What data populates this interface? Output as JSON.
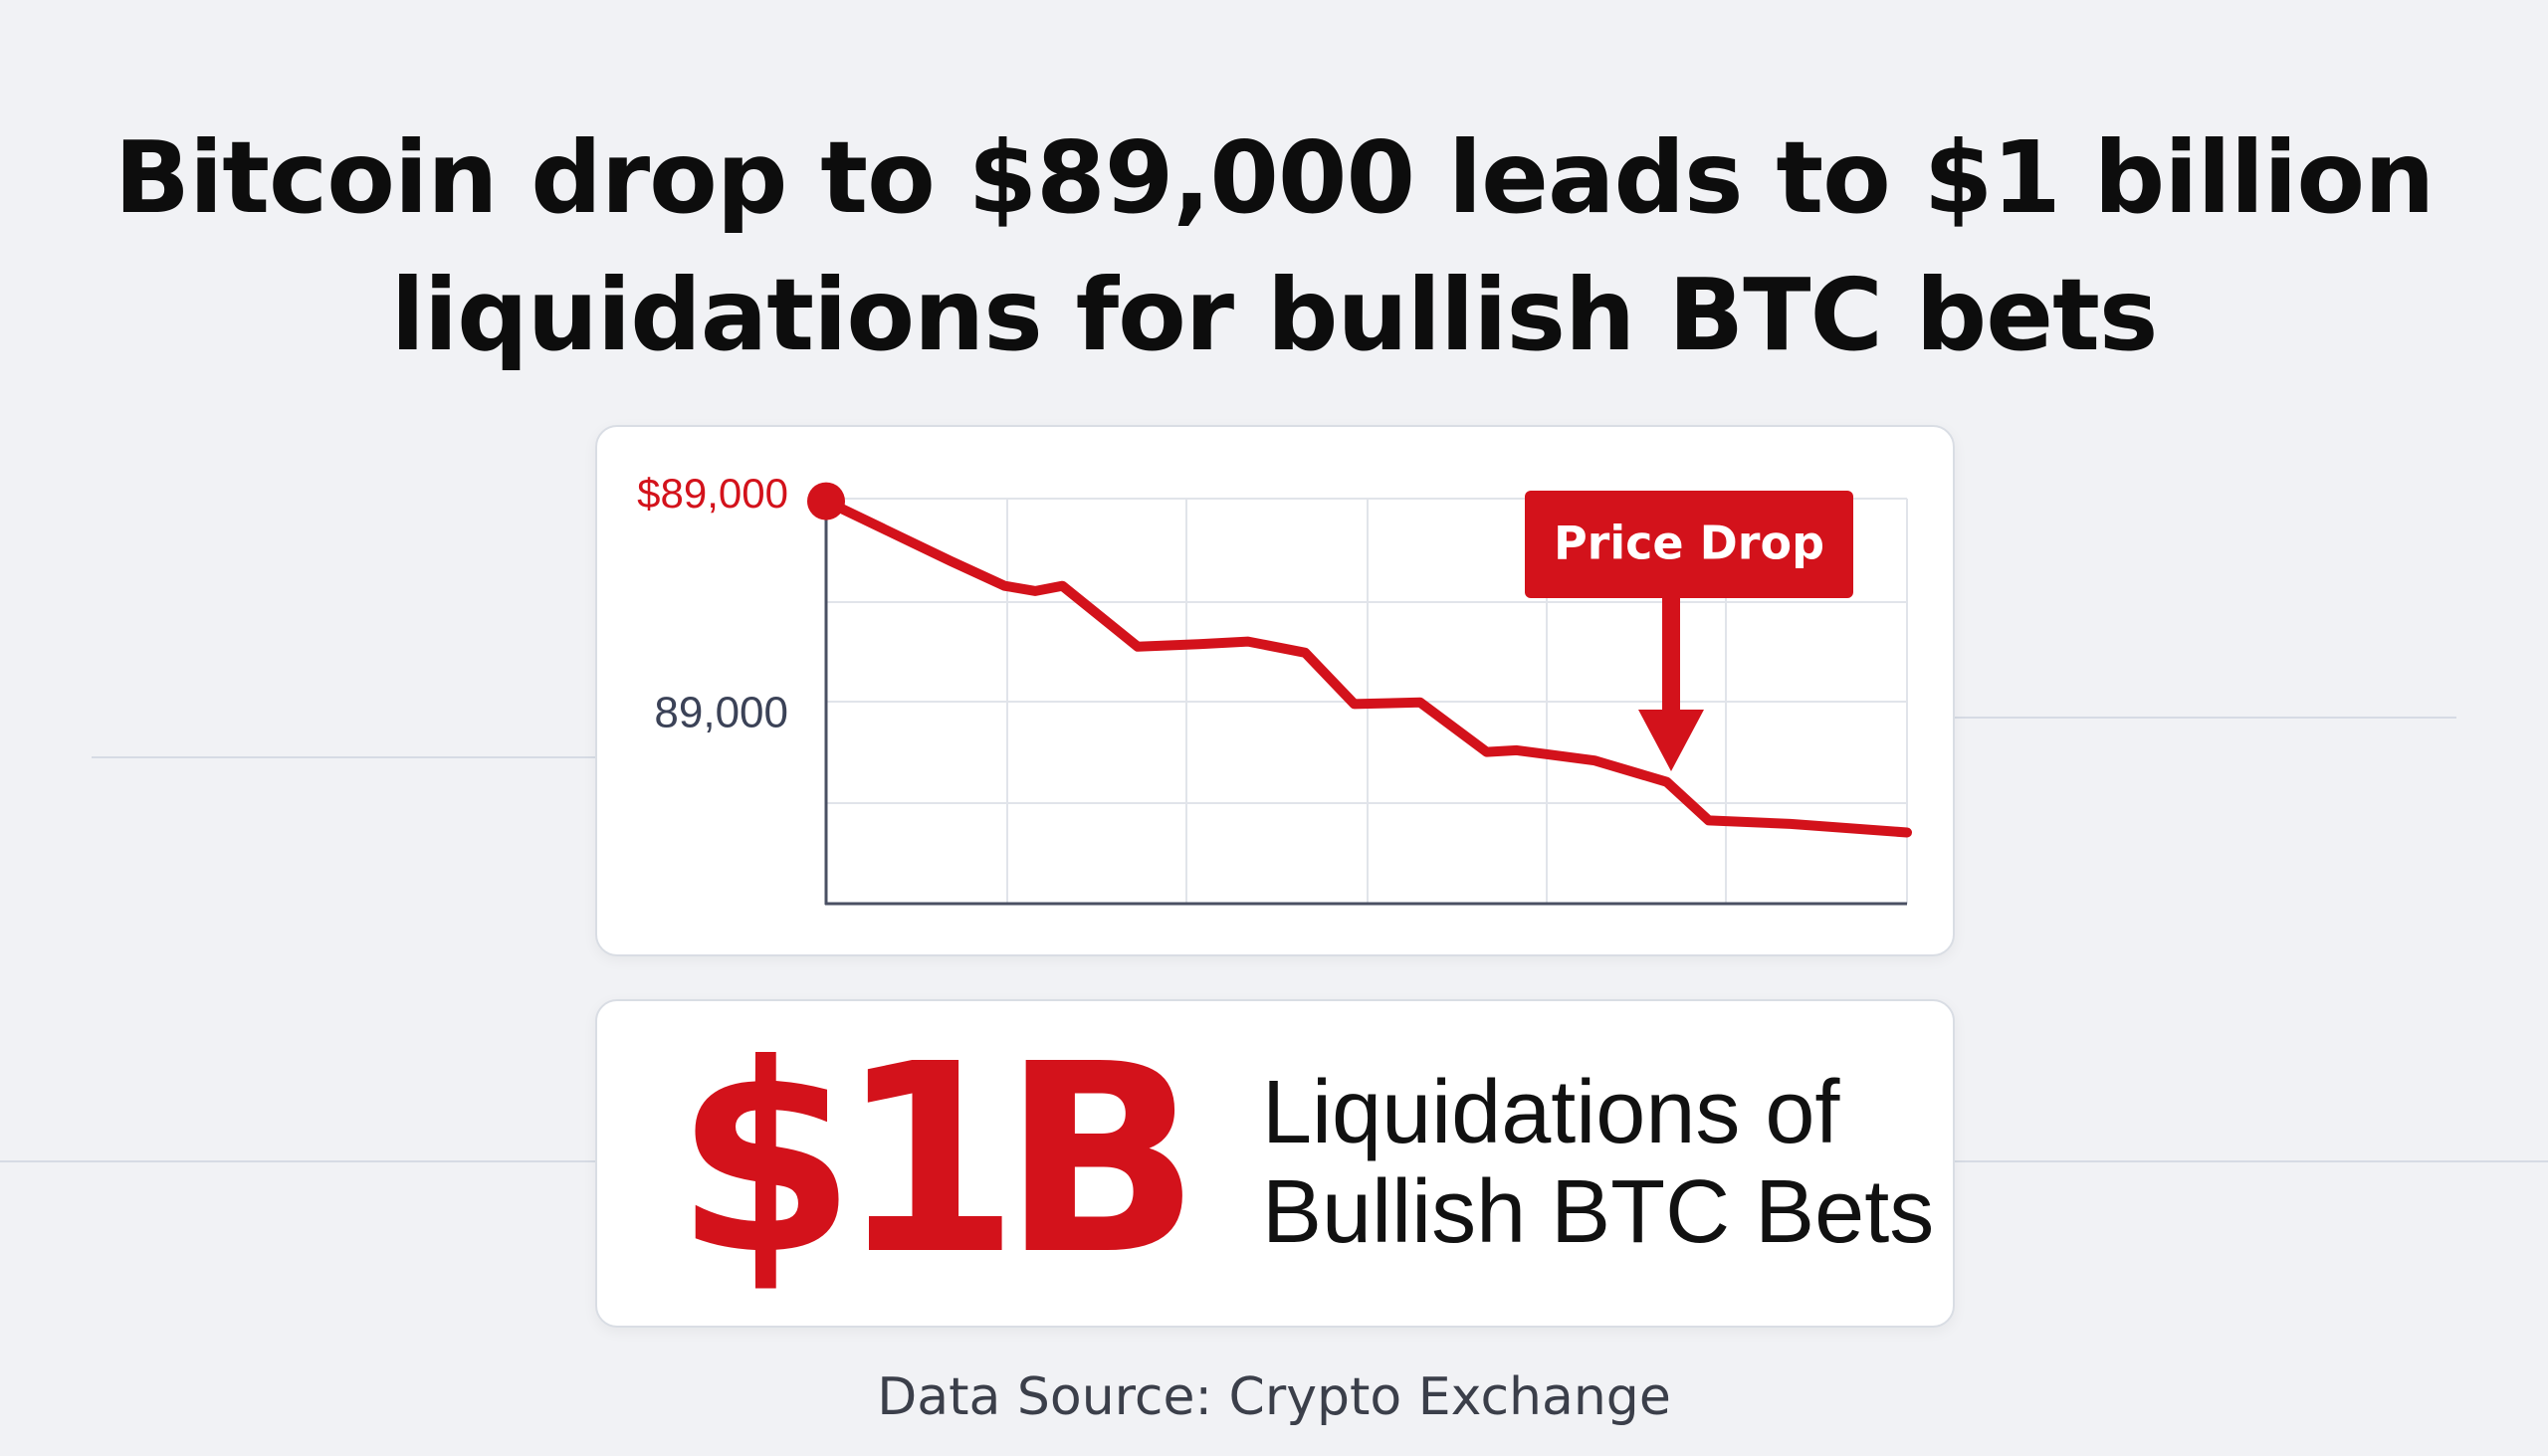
{
  "headline": {
    "line1": "Bitcoin drop to $89,000 leads to $1 billion",
    "line2": "liquidations for bullish BTC bets"
  },
  "chart_data": {
    "type": "line",
    "y_tick_labels": [
      "89,000"
    ],
    "start_label": "$89,000",
    "annotation": "Price Drop",
    "series": [
      {
        "color": "#d3121b",
        "x": [
          0,
          1.57,
          2.25,
          2.64,
          2.98,
          3.93,
          4.7,
          5.32,
          6.04,
          6.66,
          7.49,
          8.33,
          8.71,
          9.69,
          10.6,
          11.13,
          12.16,
          13.63
        ],
        "y": [
          3.97,
          3.27,
          2.98,
          2.92,
          2.98,
          2.27,
          2.3,
          2.33,
          2.2,
          1.6,
          1.62,
          1.04,
          1.06,
          0.94,
          0.69,
          0.24,
          0.2,
          0.1
        ]
      }
    ],
    "xlim": [
      0,
      13.63
    ],
    "ylim": [
      -0.72,
      4
    ],
    "grid": true,
    "title": "",
    "xlabel": "",
    "ylabel": ""
  },
  "stat": {
    "value": "$1B",
    "label_line1": "Liquidations of",
    "label_line2": "Bullish BTC Bets"
  },
  "source": "Data Source: Crypto Exchange",
  "colors": {
    "accent": "#d3121b",
    "text": "#111111",
    "background": "#f1f2f5",
    "card": "#ffffff",
    "grid": "#e1e4ea",
    "axis": "#4a5063"
  }
}
